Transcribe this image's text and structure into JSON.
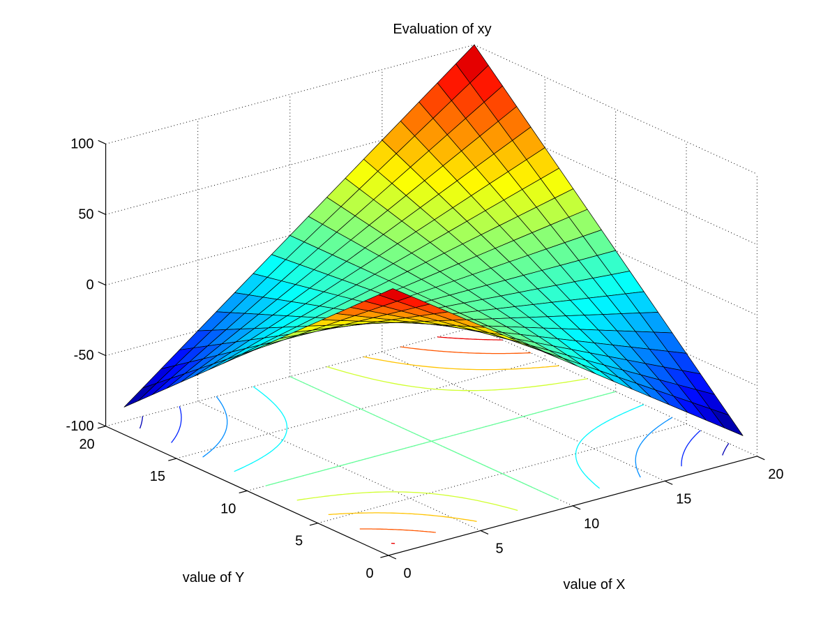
{
  "chart_data": {
    "type": "surface_with_contour",
    "title": "Evaluation of xy",
    "xlabel": "value of X",
    "ylabel": "value of Y",
    "zlabel": "",
    "colormap": "jet",
    "grid": true,
    "background": "#ffffff",
    "edge_color": "#000000",
    "axis_color": "#000000",
    "view": {
      "azimuth": -37.5,
      "elevation": 30
    },
    "xlim": [
      0,
      20
    ],
    "ylim": [
      0,
      20
    ],
    "zlim": [
      -100,
      100
    ],
    "clim": [
      -90,
      100
    ],
    "xticks": [
      0,
      5,
      10,
      15,
      20
    ],
    "yticks": [
      0,
      5,
      10,
      15,
      20
    ],
    "zticks": [
      -100,
      -50,
      0,
      50,
      100
    ],
    "contour_levels": [
      -80,
      -60,
      -40,
      -20,
      0,
      20,
      40,
      60,
      80
    ],
    "contour_plane_z": -100,
    "z_formula": "z(x,y) = (x-10)*(y-10)",
    "x": [
      1,
      2,
      3,
      4,
      5,
      6,
      7,
      8,
      9,
      10,
      11,
      12,
      13,
      14,
      15,
      16,
      17,
      18,
      19,
      20
    ],
    "y": [
      1,
      2,
      3,
      4,
      5,
      6,
      7,
      8,
      9,
      10,
      11,
      12,
      13,
      14,
      15,
      16,
      17,
      18,
      19,
      20
    ],
    "z": [
      [
        81,
        72,
        63,
        54,
        45,
        36,
        27,
        18,
        9,
        0,
        -9,
        -18,
        -27,
        -36,
        -45,
        -54,
        -63,
        -72,
        -81,
        -90
      ],
      [
        72,
        64,
        56,
        48,
        40,
        32,
        24,
        16,
        8,
        0,
        -8,
        -16,
        -24,
        -32,
        -40,
        -48,
        -56,
        -64,
        -72,
        -80
      ],
      [
        63,
        56,
        49,
        42,
        35,
        28,
        21,
        14,
        7,
        0,
        -7,
        -14,
        -21,
        -28,
        -35,
        -42,
        -49,
        -56,
        -63,
        -70
      ],
      [
        54,
        48,
        42,
        36,
        30,
        24,
        18,
        12,
        6,
        0,
        -6,
        -12,
        -18,
        -24,
        -30,
        -36,
        -42,
        -48,
        -54,
        -60
      ],
      [
        45,
        40,
        35,
        30,
        25,
        20,
        15,
        10,
        5,
        0,
        -5,
        -10,
        -15,
        -20,
        -25,
        -30,
        -35,
        -40,
        -45,
        -50
      ],
      [
        36,
        32,
        28,
        24,
        20,
        16,
        12,
        8,
        4,
        0,
        -4,
        -8,
        -12,
        -16,
        -20,
        -24,
        -28,
        -32,
        -36,
        -40
      ],
      [
        27,
        24,
        21,
        18,
        15,
        12,
        9,
        6,
        3,
        0,
        -3,
        -6,
        -9,
        -12,
        -15,
        -18,
        -21,
        -24,
        -27,
        -30
      ],
      [
        18,
        16,
        14,
        12,
        10,
        8,
        6,
        4,
        2,
        0,
        -2,
        -4,
        -6,
        -8,
        -10,
        -12,
        -14,
        -16,
        -18,
        -20
      ],
      [
        9,
        8,
        7,
        6,
        5,
        4,
        3,
        2,
        1,
        0,
        -1,
        -2,
        -3,
        -4,
        -5,
        -6,
        -7,
        -8,
        -9,
        -10
      ],
      [
        0,
        0,
        0,
        0,
        0,
        0,
        0,
        0,
        0,
        0,
        0,
        0,
        0,
        0,
        0,
        0,
        0,
        0,
        0,
        0
      ],
      [
        -9,
        -8,
        -7,
        -6,
        -5,
        -4,
        -3,
        -2,
        -1,
        0,
        1,
        2,
        3,
        4,
        5,
        6,
        7,
        8,
        9,
        10
      ],
      [
        -18,
        -16,
        -14,
        -12,
        -10,
        -8,
        -6,
        -4,
        -2,
        0,
        2,
        4,
        6,
        8,
        10,
        12,
        14,
        16,
        18,
        20
      ],
      [
        -27,
        -24,
        -21,
        -18,
        -15,
        -12,
        -9,
        -6,
        -3,
        0,
        3,
        6,
        9,
        12,
        15,
        18,
        21,
        24,
        27,
        30
      ],
      [
        -36,
        -32,
        -28,
        -24,
        -20,
        -16,
        -12,
        -8,
        -4,
        0,
        4,
        8,
        12,
        16,
        20,
        24,
        28,
        32,
        36,
        40
      ],
      [
        -45,
        -40,
        -35,
        -30,
        -25,
        -20,
        -15,
        -10,
        -5,
        0,
        5,
        10,
        15,
        20,
        25,
        30,
        35,
        40,
        45,
        50
      ],
      [
        -54,
        -48,
        -42,
        -36,
        -30,
        -24,
        -18,
        -12,
        -6,
        0,
        6,
        12,
        18,
        24,
        30,
        36,
        42,
        48,
        54,
        60
      ],
      [
        -63,
        -56,
        -49,
        -42,
        -35,
        -28,
        -21,
        -14,
        -7,
        0,
        7,
        14,
        21,
        28,
        35,
        42,
        49,
        56,
        63,
        70
      ],
      [
        -72,
        -64,
        -56,
        -48,
        -40,
        -32,
        -24,
        -16,
        -8,
        0,
        8,
        16,
        24,
        32,
        40,
        48,
        56,
        64,
        72,
        80
      ],
      [
        -81,
        -72,
        -63,
        -54,
        -45,
        -36,
        -27,
        -18,
        -9,
        0,
        9,
        18,
        27,
        36,
        45,
        54,
        63,
        72,
        81,
        90
      ],
      [
        -90,
        -80,
        -70,
        -60,
        -50,
        -40,
        -30,
        -20,
        -10,
        0,
        10,
        20,
        30,
        40,
        50,
        60,
        70,
        80,
        90,
        100
      ]
    ]
  }
}
